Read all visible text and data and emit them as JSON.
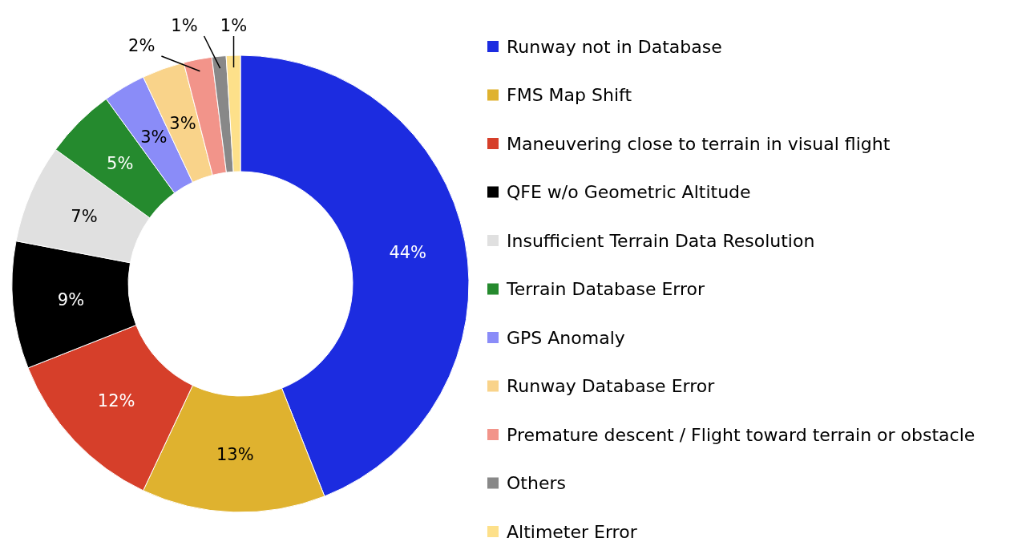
{
  "chart_data": {
    "type": "donut",
    "categories": [
      "Runway not in Database",
      "FMS Map Shift",
      "Maneuvering close to terrain in visual flight",
      "QFE w/o Geometric Altitude",
      "Insufficient Terrain Data Resolution",
      "Terrain Database Error",
      "GPS Anomaly",
      "Runway Database Error",
      "Premature descent / Flight toward terrain or obstacle",
      "Others",
      "Altimeter Error"
    ],
    "values": [
      44,
      13,
      12,
      9,
      7,
      5,
      3,
      3,
      2,
      1,
      1
    ],
    "colors": [
      "#1c2ce0",
      "#dfb22f",
      "#d63f2a",
      "#000000",
      "#e0e0e0",
      "#258a2e",
      "#8a8cf8",
      "#f9d38a",
      "#f2948a",
      "#888888",
      "#fde08a"
    ],
    "value_labels": [
      "44%",
      "13%",
      "12%",
      "9%",
      "7%",
      "5%",
      "3%",
      "3%",
      "2%",
      "1%",
      "1%"
    ],
    "legend": "right"
  }
}
